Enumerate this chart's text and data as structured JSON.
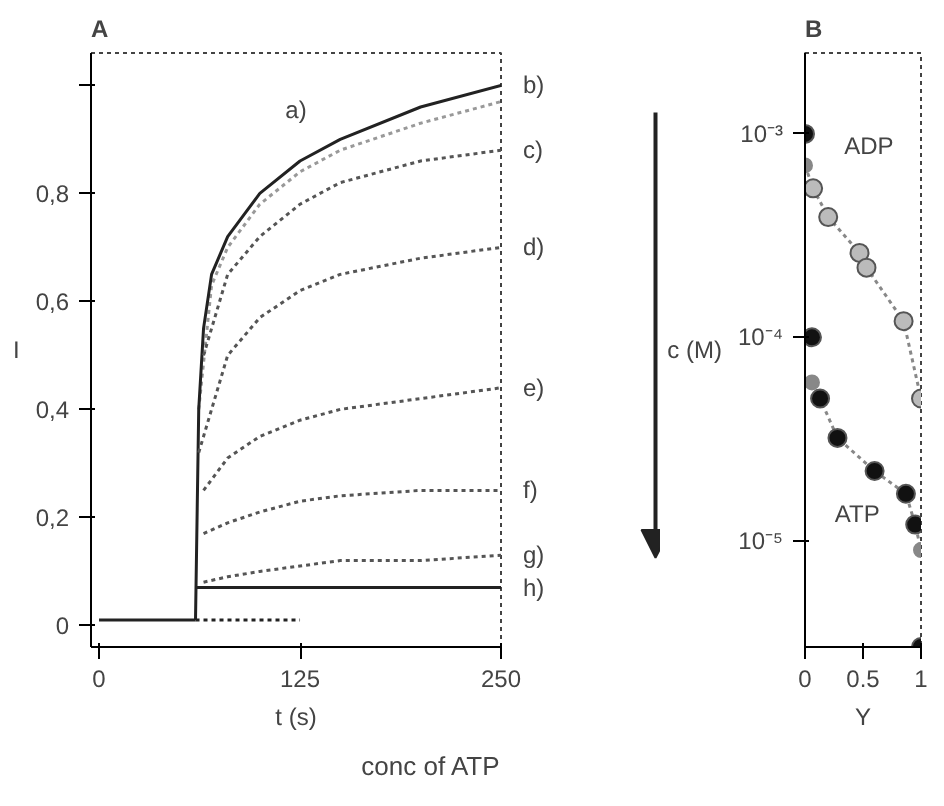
{
  "chart_data": [
    {
      "type": "line",
      "title": "A",
      "xlabel": "t (s)",
      "ylabel": "I",
      "xlim": [
        -5,
        250
      ],
      "ylim": [
        -0.04,
        1.06
      ],
      "xticks": [
        0,
        125,
        250
      ],
      "yticks": [
        0,
        {
          "value": 0.2,
          "label": "0,2"
        },
        {
          "value": 0.4,
          "label": "0,4"
        },
        {
          "value": 0.6,
          "label": "0,6"
        },
        {
          "value": 0.8,
          "label": "0,8"
        },
        {
          "value": 1,
          "label": null
        }
      ],
      "grid": false,
      "marker": "none",
      "annotations": [
        "a)",
        "conc of ATP"
      ],
      "series": [
        {
          "color": "#222222",
          "line_style": "solid",
          "x": [
            0,
            60
          ],
          "values": [
            0.01,
            0.01
          ]
        },
        {
          "color": "#222222",
          "line_style": "dotted",
          "x": [
            60,
            125
          ],
          "values": [
            0.01,
            0.01
          ]
        },
        {
          "color": "#999999",
          "line_style": "dotted",
          "x": [
            62,
            70,
            80,
            100,
            125,
            150,
            200,
            250
          ],
          "values": [
            0.4,
            0.63,
            0.7,
            0.78,
            0.84,
            0.88,
            0.93,
            0.97
          ]
        },
        {
          "name": "b)",
          "color": "#222222",
          "line_style": "solid",
          "x": [
            60,
            62,
            65,
            70,
            80,
            100,
            125,
            150,
            200,
            250
          ],
          "values": [
            0.01,
            0.4,
            0.55,
            0.65,
            0.72,
            0.8,
            0.86,
            0.9,
            0.96,
            1.0
          ]
        },
        {
          "name": "c)",
          "color": "#555555",
          "line_style": "dotted",
          "x": [
            65,
            80,
            100,
            125,
            150,
            200,
            250
          ],
          "values": [
            0.5,
            0.65,
            0.72,
            0.78,
            0.82,
            0.86,
            0.88
          ]
        },
        {
          "name": "d)",
          "color": "#555555",
          "line_style": "dotted",
          "x": [
            62,
            80,
            100,
            125,
            150,
            200,
            250
          ],
          "values": [
            0.32,
            0.5,
            0.57,
            0.62,
            0.65,
            0.68,
            0.7
          ]
        },
        {
          "name": "e)",
          "color": "#555555",
          "line_style": "dotted",
          "x": [
            65,
            80,
            100,
            125,
            150,
            200,
            250
          ],
          "values": [
            0.25,
            0.31,
            0.35,
            0.38,
            0.4,
            0.42,
            0.44
          ]
        },
        {
          "name": "f)",
          "color": "#555555",
          "line_style": "dotted",
          "x": [
            65,
            80,
            100,
            125,
            150,
            200,
            250
          ],
          "values": [
            0.17,
            0.19,
            0.21,
            0.23,
            0.24,
            0.25,
            0.25
          ]
        },
        {
          "name": "g)",
          "color": "#555555",
          "line_style": "dotted",
          "x": [
            65,
            80,
            100,
            125,
            150,
            200,
            250
          ],
          "values": [
            0.08,
            0.09,
            0.1,
            0.11,
            0.12,
            0.12,
            0.13
          ]
        },
        {
          "name": "h)",
          "color": "#222222",
          "line_style": "solid",
          "x": [
            60,
            250
          ],
          "values": [
            0.07,
            0.07
          ]
        }
      ]
    },
    {
      "type": "scatter",
      "title": "B",
      "xlabel": "Y",
      "ylabel": "c (M)",
      "log": "y",
      "xlim": [
        0,
        1
      ],
      "ylim": [
        3e-06,
        0.0025
      ],
      "xticks": [
        0,
        0.5,
        1
      ],
      "yticks": [
        {
          "value": 0.001,
          "label": "10⁻³"
        },
        {
          "value": 0.0001,
          "label": "10⁻⁴"
        },
        {
          "value": 1e-05,
          "label": "10⁻⁵"
        }
      ],
      "grid": false,
      "marker": "circle",
      "annotations": [
        "ADP",
        "ATP"
      ],
      "series": [
        {
          "type": "line",
          "line_style": "dotted",
          "color": "#888888",
          "x": [
            0,
            0.07,
            0.2,
            0.47,
            0.53,
            0.85,
            1.0
          ],
          "values": [
            0.0007,
            0.00054,
            0.00039,
            0.00026,
            0.00022,
            0.00012,
            5e-05
          ]
        },
        {
          "type": "line",
          "line_style": "dotted",
          "color": "#888888",
          "x": [
            0.06,
            0.13,
            0.28,
            0.6,
            0.87,
            0.95,
            1.0
          ],
          "values": [
            6e-05,
            5e-05,
            3.2e-05,
            2.2e-05,
            1.7e-05,
            1.2e-05,
            9e-06
          ]
        },
        {
          "type": "scatter",
          "color": "#bbbbbb",
          "x": [
            0.07,
            0.2,
            0.47,
            0.53,
            0.85,
            1.0
          ],
          "values": [
            0.00054,
            0.00039,
            0.00026,
            0.00022,
            0.00012,
            5e-05
          ]
        },
        {
          "type": "scatter",
          "color": "#111111",
          "x": [
            0,
            0.06,
            0.13,
            0.28,
            0.6,
            0.87,
            0.95,
            1.0
          ],
          "values": [
            0.001,
            0.0001,
            5e-05,
            3.2e-05,
            2.2e-05,
            1.7e-05,
            1.2e-05,
            3e-06
          ]
        }
      ]
    }
  ]
}
